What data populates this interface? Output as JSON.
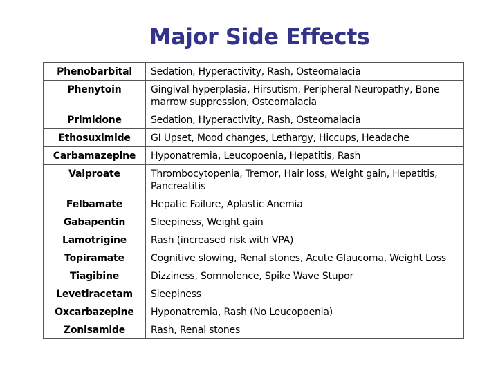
{
  "title": "Major Side Effects",
  "rows": [
    {
      "drug": "Phenobarbital",
      "effects": "Sedation, Hyperactivity, Rash, Osteomalacia"
    },
    {
      "drug": "Phenytoin",
      "effects": "Gingival hyperplasia, Hirsutism, Peripheral Neuropathy, Bone marrow suppression, Osteomalacia"
    },
    {
      "drug": "Primidone",
      "effects": "Sedation, Hyperactivity, Rash, Osteomalacia"
    },
    {
      "drug": "Ethosuximide",
      "effects": "GI Upset, Mood changes, Lethargy, Hiccups, Headache"
    },
    {
      "drug": "Carbamazepine",
      "effects": "Hyponatremia, Leucopoenia, Hepatitis, Rash"
    },
    {
      "drug": "Valproate",
      "effects": "Thrombocytopenia, Tremor, Hair loss, Weight gain, Hepatitis, Pancreatitis"
    },
    {
      "drug": "Felbamate",
      "effects": "Hepatic Failure, Aplastic Anemia"
    },
    {
      "drug": "Gabapentin",
      "effects": "Sleepiness, Weight gain"
    },
    {
      "drug": "Lamotrigine",
      "effects": "Rash (increased risk with VPA)"
    },
    {
      "drug": "Topiramate",
      "effects": "Cognitive slowing, Renal stones, Acute Glaucoma, Weight Loss"
    },
    {
      "drug": "Tiagibine",
      "effects": "Dizziness, Somnolence, Spike Wave Stupor"
    },
    {
      "drug": "Levetiracetam",
      "effects": "Sleepiness"
    },
    {
      "drug": "Oxcarbazepine",
      "effects": "Hyponatremia, Rash (No Leucopoenia)"
    },
    {
      "drug": "Zonisamide",
      "effects": "Rash, Renal stones"
    }
  ]
}
